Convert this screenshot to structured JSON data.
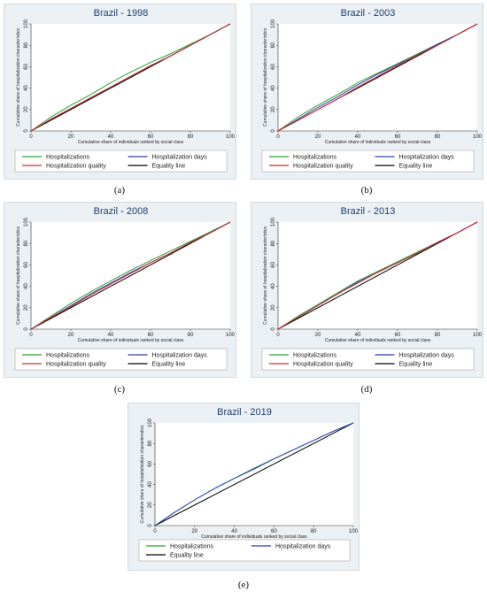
{
  "chart_data": [
    {
      "type": "line",
      "caption": "(a)",
      "title": "Brazil - 1998",
      "xlabel": "Cumulative share of individuals ranked by social class",
      "ylabel": "Cumulative share of hospitalization characteristics",
      "xlim": [
        0,
        100
      ],
      "ylim": [
        0,
        100
      ],
      "xticks": [
        "0",
        "20",
        "40",
        "60",
        "80",
        "100"
      ],
      "yticks": [
        "0",
        "20",
        "40",
        "60",
        "80",
        "100"
      ],
      "legend_position": "bottom",
      "series": [
        {
          "name": "Hospitalizations",
          "color": "#2ca02c",
          "x": [
            0,
            10,
            20,
            30,
            40,
            50,
            60,
            70,
            80,
            90,
            100
          ],
          "y": [
            0,
            13,
            24,
            34,
            45,
            55,
            64,
            72,
            81,
            90,
            100
          ]
        },
        {
          "name": "Hospitalization days",
          "color": "#2f3ebd",
          "x": [
            0,
            10,
            20,
            30,
            40,
            50,
            60,
            70,
            80,
            90,
            100
          ],
          "y": [
            0,
            11,
            21,
            31,
            41,
            51,
            61,
            70,
            80,
            90,
            100
          ]
        },
        {
          "name": "Hospitalization quality",
          "color": "#d62728",
          "x": [
            0,
            10,
            20,
            30,
            40,
            50,
            60,
            70,
            80,
            90,
            100
          ],
          "y": [
            0,
            11,
            21,
            31,
            41,
            51,
            61,
            70,
            80,
            90,
            100
          ]
        },
        {
          "name": "Equality line",
          "color": "#000000",
          "x": [
            0,
            100
          ],
          "y": [
            0,
            100
          ]
        }
      ]
    },
    {
      "type": "line",
      "caption": "(b)",
      "title": "Brazil - 2003",
      "xlabel": "Cumulative share of individuals ranked by social class",
      "ylabel": "Cumulative share of hospitalization characteristics",
      "xlim": [
        0,
        100
      ],
      "ylim": [
        0,
        100
      ],
      "xticks": [
        "0",
        "20",
        "40",
        "60",
        "80",
        "100"
      ],
      "yticks": [
        "0",
        "20",
        "40",
        "60",
        "80",
        "100"
      ],
      "legend_position": "bottom",
      "series": [
        {
          "name": "Hospitalizations",
          "color": "#2ca02c",
          "x": [
            0,
            10,
            20,
            30,
            40,
            50,
            60,
            70,
            80,
            90,
            100
          ],
          "y": [
            0,
            13,
            24,
            34,
            45,
            54,
            63,
            72,
            81,
            90,
            100
          ]
        },
        {
          "name": "Hospitalization days",
          "color": "#2f3ebd",
          "x": [
            0,
            10,
            20,
            30,
            40,
            50,
            60,
            70,
            80,
            90,
            100
          ],
          "y": [
            0,
            11,
            22,
            32,
            43,
            53,
            62,
            71,
            81,
            90,
            100
          ]
        },
        {
          "name": "Hospitalization quality",
          "color": "#d62728",
          "x": [
            0,
            10,
            20,
            30,
            40,
            50,
            60,
            70,
            80,
            90,
            100
          ],
          "y": [
            0,
            10,
            20,
            30,
            41,
            51,
            61,
            71,
            80,
            90,
            100
          ]
        },
        {
          "name": "Equality line",
          "color": "#000000",
          "x": [
            0,
            100
          ],
          "y": [
            0,
            100
          ]
        }
      ]
    },
    {
      "type": "line",
      "caption": "(c)",
      "title": "Brazil - 2008",
      "xlabel": "Cumulative share of individuals ranked by social class",
      "ylabel": "Cumulative share of hospitalization characteristics",
      "xlim": [
        0,
        100
      ],
      "ylim": [
        0,
        100
      ],
      "xticks": [
        "0",
        "20",
        "40",
        "60",
        "80",
        "100"
      ],
      "yticks": [
        "0",
        "20",
        "40",
        "60",
        "80",
        "100"
      ],
      "legend_position": "bottom",
      "series": [
        {
          "name": "Hospitalizations",
          "color": "#2ca02c",
          "x": [
            0,
            10,
            20,
            30,
            40,
            50,
            60,
            70,
            80,
            90,
            100
          ],
          "y": [
            0,
            12,
            24,
            35,
            45,
            55,
            64,
            73,
            82,
            91,
            100
          ]
        },
        {
          "name": "Hospitalization days",
          "color": "#2f3ebd",
          "x": [
            0,
            10,
            20,
            30,
            40,
            50,
            60,
            70,
            80,
            90,
            100
          ],
          "y": [
            0,
            11,
            22,
            33,
            43,
            53,
            62,
            71,
            81,
            90,
            100
          ]
        },
        {
          "name": "Hospitalization quality",
          "color": "#d62728",
          "x": [
            0,
            10,
            20,
            30,
            40,
            50,
            60,
            70,
            80,
            90,
            100
          ],
          "y": [
            0,
            11,
            21,
            32,
            42,
            52,
            62,
            71,
            81,
            90,
            100
          ]
        },
        {
          "name": "Equality line",
          "color": "#000000",
          "x": [
            0,
            100
          ],
          "y": [
            0,
            100
          ]
        }
      ]
    },
    {
      "type": "line",
      "caption": "(d)",
      "title": "Brazil - 2013",
      "xlabel": "Cumulative share of individuals ranked by social class",
      "ylabel": "Cumulative share of hospitalization characteristics",
      "xlim": [
        0,
        100
      ],
      "ylim": [
        0,
        100
      ],
      "xticks": [
        "0",
        "20",
        "40",
        "60",
        "80",
        "100"
      ],
      "yticks": [
        "0",
        "20",
        "40",
        "60",
        "80",
        "100"
      ],
      "legend_position": "bottom",
      "series": [
        {
          "name": "Hospitalizations",
          "color": "#2ca02c",
          "x": [
            0,
            10,
            20,
            30,
            40,
            50,
            60,
            70,
            80,
            90,
            100
          ],
          "y": [
            0,
            12,
            23,
            34,
            45,
            54,
            63,
            72,
            81,
            90,
            100
          ]
        },
        {
          "name": "Hospitalization days",
          "color": "#2f3ebd",
          "x": [
            0,
            10,
            20,
            30,
            40,
            50,
            60,
            70,
            80,
            90,
            100
          ],
          "y": [
            0,
            11,
            22,
            33,
            44,
            53,
            62,
            71,
            81,
            90,
            100
          ]
        },
        {
          "name": "Hospitalization quality",
          "color": "#d62728",
          "x": [
            0,
            10,
            20,
            30,
            40,
            50,
            60,
            70,
            80,
            90,
            100
          ],
          "y": [
            0,
            11,
            22,
            33,
            43,
            53,
            62,
            71,
            81,
            90,
            100
          ]
        },
        {
          "name": "Equality line",
          "color": "#000000",
          "x": [
            0,
            100
          ],
          "y": [
            0,
            100
          ]
        }
      ]
    },
    {
      "type": "line",
      "caption": "(e)",
      "title": "Brazil - 2019",
      "xlabel": "Cumulative share of individuals ranked by social class",
      "ylabel": "Cumulative share of hospitalization characteristics",
      "xlim": [
        0,
        100
      ],
      "ylim": [
        0,
        100
      ],
      "xticks": [
        "0",
        "20",
        "40",
        "60",
        "80",
        "100"
      ],
      "yticks": [
        "0",
        "20",
        "40",
        "60",
        "80",
        "100"
      ],
      "legend_position": "bottom",
      "series": [
        {
          "name": "Hospitalizations",
          "color": "#2ca02c",
          "x": [
            0,
            10,
            20,
            30,
            40,
            50,
            60,
            70,
            80,
            90,
            100
          ],
          "y": [
            0,
            13,
            25,
            36,
            46,
            56,
            65,
            74,
            83,
            92,
            100
          ]
        },
        {
          "name": "Hospitalization days",
          "color": "#2f3ebd",
          "x": [
            0,
            10,
            20,
            30,
            40,
            50,
            60,
            70,
            80,
            90,
            100
          ],
          "y": [
            0,
            13,
            25,
            36,
            46,
            55,
            65,
            74,
            83,
            92,
            100
          ]
        },
        {
          "name": "Equality line",
          "color": "#000000",
          "x": [
            0,
            100
          ],
          "y": [
            0,
            100
          ]
        }
      ]
    }
  ]
}
